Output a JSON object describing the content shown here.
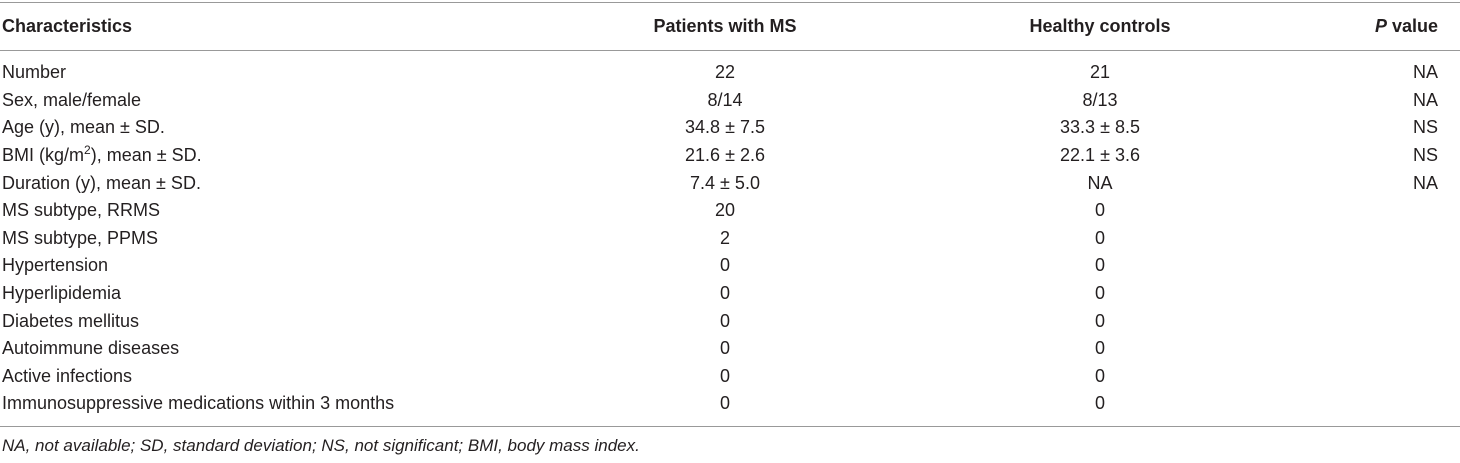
{
  "table": {
    "header": [
      "Characteristics",
      "Patients with MS",
      "Healthy controls",
      {
        "italic": "P",
        "text": " value"
      }
    ],
    "rows": [
      [
        "Number",
        "22",
        "21",
        "NA"
      ],
      [
        "Sex, male/female",
        "8/14",
        "8/13",
        "NA"
      ],
      [
        "Age (y), mean ± SD.",
        "34.8 ± 7.5",
        "33.3 ± 8.5",
        "NS"
      ],
      [
        {
          "text": "BMI (kg/m",
          "sup": "2",
          "after": "), mean ± SD."
        },
        "21.6 ± 2.6",
        "22.1 ± 3.6",
        "NS"
      ],
      [
        "Duration (y), mean ± SD.",
        "7.4 ± 5.0",
        "NA",
        "NA"
      ],
      [
        "MS subtype, RRMS",
        "20",
        "0",
        null
      ],
      [
        "MS subtype, PPMS",
        "2",
        "0",
        null
      ],
      [
        "Hypertension",
        "0",
        "0",
        null
      ],
      [
        "Hyperlipidemia",
        "0",
        "0",
        null
      ],
      [
        "Diabetes mellitus",
        "0",
        "0",
        null
      ],
      [
        "Autoimmune diseases",
        "0",
        "0",
        null
      ],
      [
        "Active infections",
        "0",
        "0",
        null
      ],
      [
        "Immunosuppressive medications within 3 months",
        "0",
        "0",
        null
      ]
    ],
    "footnote": "NA, not available; SD, standard deviation; NS, not significant; BMI, body mass index."
  }
}
